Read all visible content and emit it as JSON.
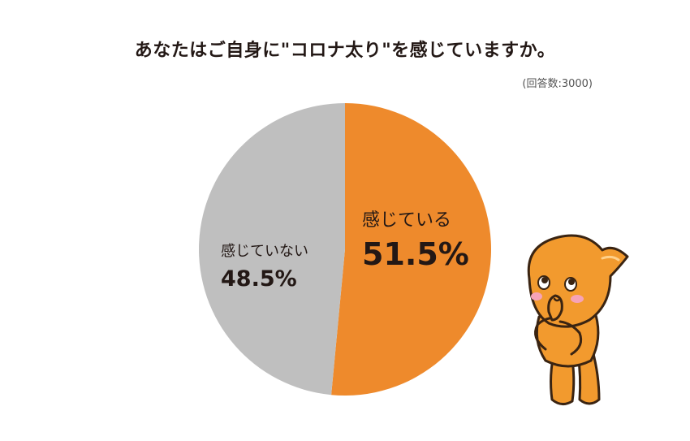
{
  "title": "あなたはご自身に\"コロナ太り\"を感じていますか。",
  "note": "(回答数:3000)",
  "chart_data": {
    "type": "pie",
    "slices": [
      {
        "label": "感じている",
        "value": 51.5,
        "value_text": "51.5%",
        "color": "#EE8A2C",
        "label_color": "#231815"
      },
      {
        "label": "感じていない",
        "value": 48.5,
        "value_text": "48.5%",
        "color": "#BFBFBF",
        "label_color": "#231815"
      }
    ],
    "start": "12 o'clock",
    "direction": "clockwise",
    "legend": "none"
  },
  "mascot": {
    "icon": "orange-drop-mascot-thinking",
    "body_color": "#F29A2E",
    "outline_color": "#3A2412",
    "cheek_color": "#F6A3B8"
  }
}
